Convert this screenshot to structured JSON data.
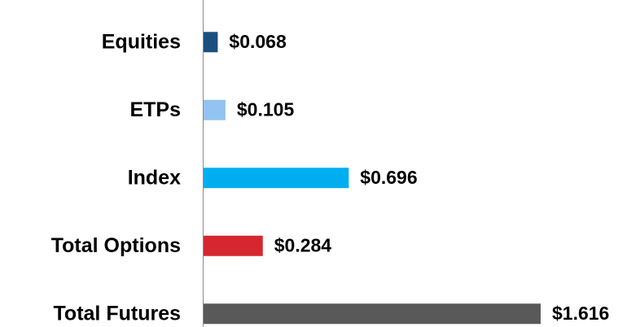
{
  "chart_data": {
    "type": "bar",
    "orientation": "horizontal",
    "categories": [
      "Equities",
      "ETPs",
      "Index",
      "Total Options",
      "Total Futures"
    ],
    "values": [
      0.068,
      0.105,
      0.696,
      0.284,
      1.616
    ],
    "value_labels": [
      "$0.068",
      "$0.105",
      "$0.696",
      "$0.284",
      "$1.616"
    ],
    "colors": [
      "#1b4f80",
      "#93c3f1",
      "#00aeef",
      "#d6262e",
      "#595959"
    ]
  }
}
